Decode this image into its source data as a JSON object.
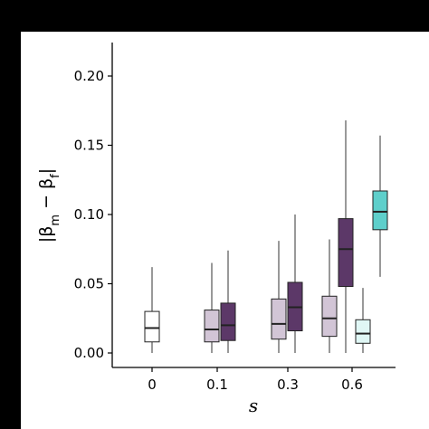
{
  "chart_data": {
    "type": "box",
    "categories": [
      "0",
      "0.1",
      "0.3",
      "0.6"
    ],
    "xlabel": "s",
    "ylabel_parts": {
      "open": "|β",
      "sub1": "m",
      "mid": " − β",
      "sub2": "f",
      "close": "|"
    },
    "ylim": [
      0,
      0.22
    ],
    "yticks": [
      "0.00",
      "0.05",
      "0.10",
      "0.15",
      "0.20"
    ],
    "ytick_values": [
      0,
      0.05,
      0.1,
      0.15,
      0.2
    ],
    "grid": false,
    "boxes": [
      {
        "category": "0",
        "fill": "#ffffff",
        "whisker_low": 0.0,
        "q1": 0.008,
        "median": 0.018,
        "q3": 0.03,
        "whisker_high": 0.062
      },
      {
        "category": "0.1",
        "fill": "#d2c5d6",
        "whisker_low": 0.0,
        "q1": 0.008,
        "median": 0.017,
        "q3": 0.031,
        "whisker_high": 0.065
      },
      {
        "category": "0.1",
        "fill": "#5c3868",
        "whisker_low": 0.0,
        "q1": 0.009,
        "median": 0.02,
        "q3": 0.036,
        "whisker_high": 0.074
      },
      {
        "category": "0.3",
        "fill": "#d2c5d6",
        "whisker_low": 0.0,
        "q1": 0.01,
        "median": 0.021,
        "q3": 0.039,
        "whisker_high": 0.081
      },
      {
        "category": "0.3",
        "fill": "#5c3868",
        "whisker_low": 0.0,
        "q1": 0.016,
        "median": 0.033,
        "q3": 0.051,
        "whisker_high": 0.1
      },
      {
        "category": "0.6",
        "fill": "#d2c5d6",
        "whisker_low": 0.0,
        "q1": 0.012,
        "median": 0.025,
        "q3": 0.041,
        "whisker_high": 0.082
      },
      {
        "category": "0.6",
        "fill": "#5c3868",
        "whisker_low": 0.0,
        "q1": 0.048,
        "median": 0.075,
        "q3": 0.097,
        "whisker_high": 0.168
      },
      {
        "category": "0.6",
        "fill": "#e0f7f5",
        "whisker_low": 0.0,
        "q1": 0.007,
        "median": 0.014,
        "q3": 0.024,
        "whisker_high": 0.047
      },
      {
        "category": "0.6",
        "fill": "#5ecfcb",
        "whisker_low": 0.055,
        "q1": 0.089,
        "median": 0.102,
        "q3": 0.117,
        "whisker_high": 0.157
      }
    ]
  }
}
